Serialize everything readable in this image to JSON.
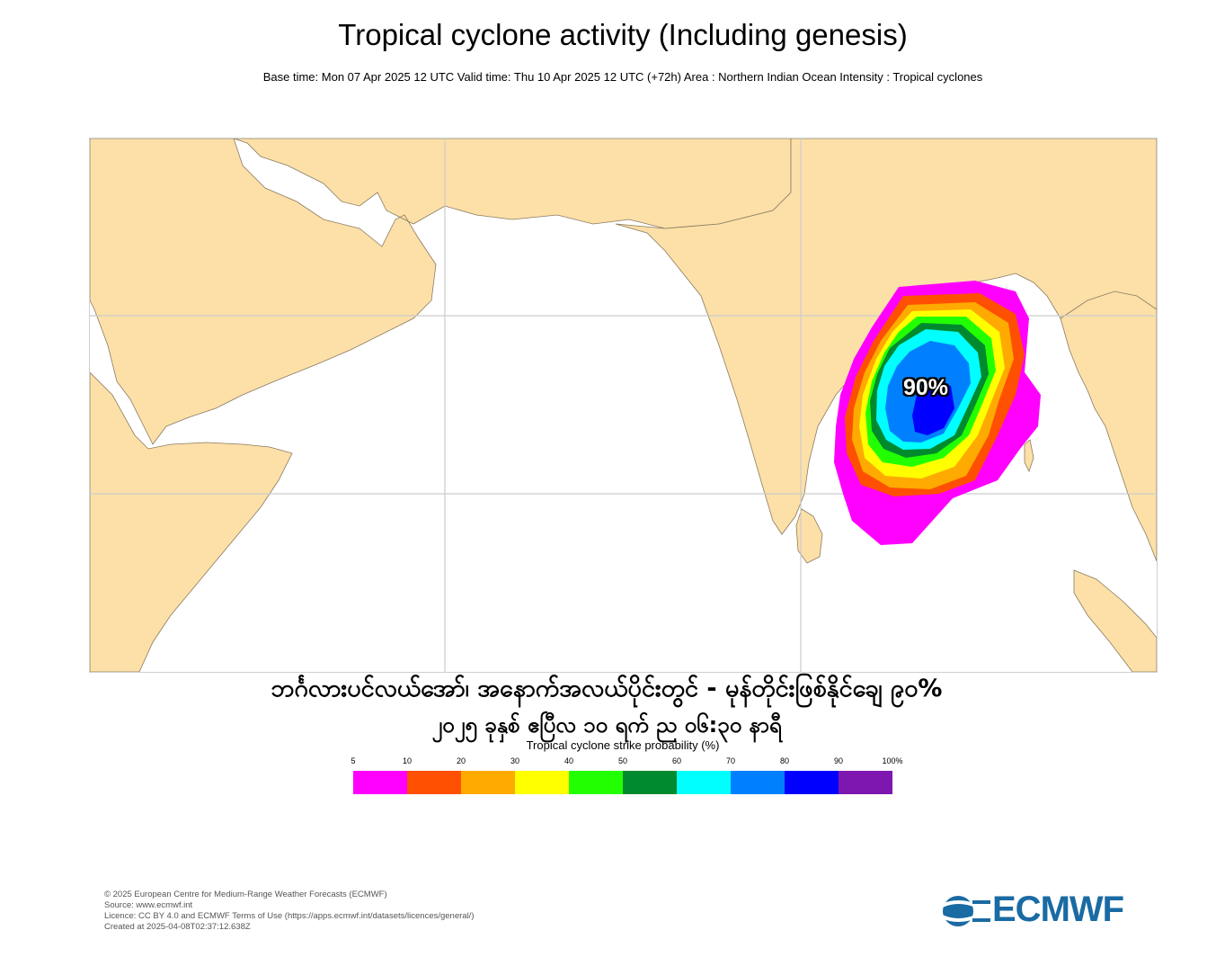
{
  "header": {
    "title": "Tropical cyclone activity (Including genesis)",
    "subtitle": "Base time: Mon 07 Apr 2025 12 UTC Valid time: Thu 10 Apr 2025 12 UTC (+72h) Area : Northern Indian Ocean Intensity : Tropical cyclones"
  },
  "map": {
    "probability_label": "90%"
  },
  "annotation": {
    "line1": "ဘင်္ဂလားပင်လယ်အော်၊ အနောက်အလယ်ပိုင်းတွင် - မုန်တိုင်းဖြစ်နိုင်ချေ ၉၀%",
    "line2": "၂၀၂၅ ခုနှစ် ဧပြီလ ၁၀ ရက် ည ၀၆:၃၀ နာရီ"
  },
  "colorbar": {
    "title": "Tropical cyclone strike probability (%)",
    "ticks": [
      "5",
      "10",
      "20",
      "30",
      "40",
      "50",
      "60",
      "70",
      "80",
      "90",
      "100%"
    ],
    "colors": [
      "#ff00ff",
      "#ff4f00",
      "#ffaa00",
      "#ffff00",
      "#22ff00",
      "#008a2e",
      "#00ffff",
      "#0080ff",
      "#0000ff",
      "#7e16b0"
    ]
  },
  "footer": {
    "copyright": "© 2025 European Centre for Medium-Range Weather Forecasts (ECMWF)",
    "source": "Source: www.ecmwf.int",
    "licence": "Licence: CC BY 4.0 and ECMWF Terms of Use (https://apps.ecmwf.int/datasets/licences/general/)",
    "created": "Created at 2025-04-08T02:37:12.638Z"
  },
  "logo": {
    "text": "ECMWF",
    "color": "#1a6aa3"
  },
  "colors": {
    "land": "#fce0a8",
    "sea": "#ffffff",
    "border": "#8a7a60",
    "gridline": "#cccccc"
  }
}
